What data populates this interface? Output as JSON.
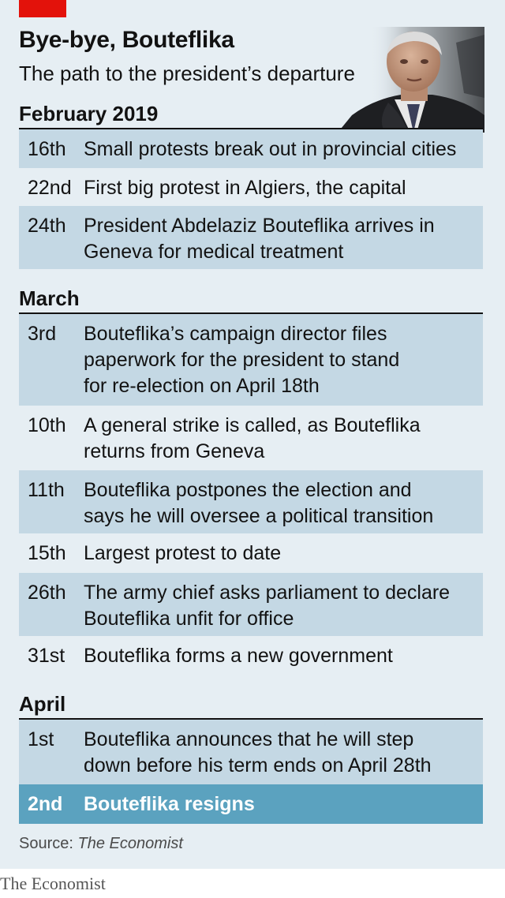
{
  "header": {
    "title": "Bye-bye, Bouteflika",
    "subtitle": "The path to the president’s departure"
  },
  "colors": {
    "accent_red": "#e3120b",
    "panel_bg": "#e6eef3",
    "row_shade": "#c4d8e4",
    "highlight": "#5ba2bf"
  },
  "months": [
    {
      "name": "February 2019",
      "events": [
        {
          "day": "16th",
          "lines": [
            "Small protests break out in provincial cities"
          ]
        },
        {
          "day": "22nd",
          "lines": [
            "First big protest in Algiers, the capital"
          ]
        },
        {
          "day": "24th",
          "lines": [
            "President Abdelaziz Bouteflika arrives in",
            "Geneva for medical treatment"
          ]
        }
      ]
    },
    {
      "name": "March",
      "events": [
        {
          "day": "3rd",
          "lines": [
            "Bouteflika’s campaign director files",
            "paperwork for the president to stand",
            "for re-election on April 18th"
          ]
        },
        {
          "day": "10th",
          "lines": [
            "A general strike is called, as Bouteflika",
            "returns from Geneva"
          ]
        },
        {
          "day": "11th",
          "lines": [
            "Bouteflika postpones the election and",
            "says he will oversee a political transition"
          ]
        },
        {
          "day": "15th",
          "lines": [
            "Largest protest to date"
          ]
        },
        {
          "day": "26th",
          "lines": [
            "The army chief asks parliament to declare",
            "Bouteflika unfit for office"
          ]
        },
        {
          "day": "31st",
          "lines": [
            "Bouteflika forms a new government"
          ]
        }
      ]
    },
    {
      "name": "April",
      "events": [
        {
          "day": "1st",
          "lines": [
            "Bouteflika announces that he will step",
            "down before his term ends on April 28th"
          ]
        },
        {
          "day": "2nd",
          "lines": [
            "Bouteflika resigns"
          ]
        }
      ]
    }
  ],
  "source": {
    "label": "Source: ",
    "publication": "The Economist"
  },
  "brand": "The Economist"
}
